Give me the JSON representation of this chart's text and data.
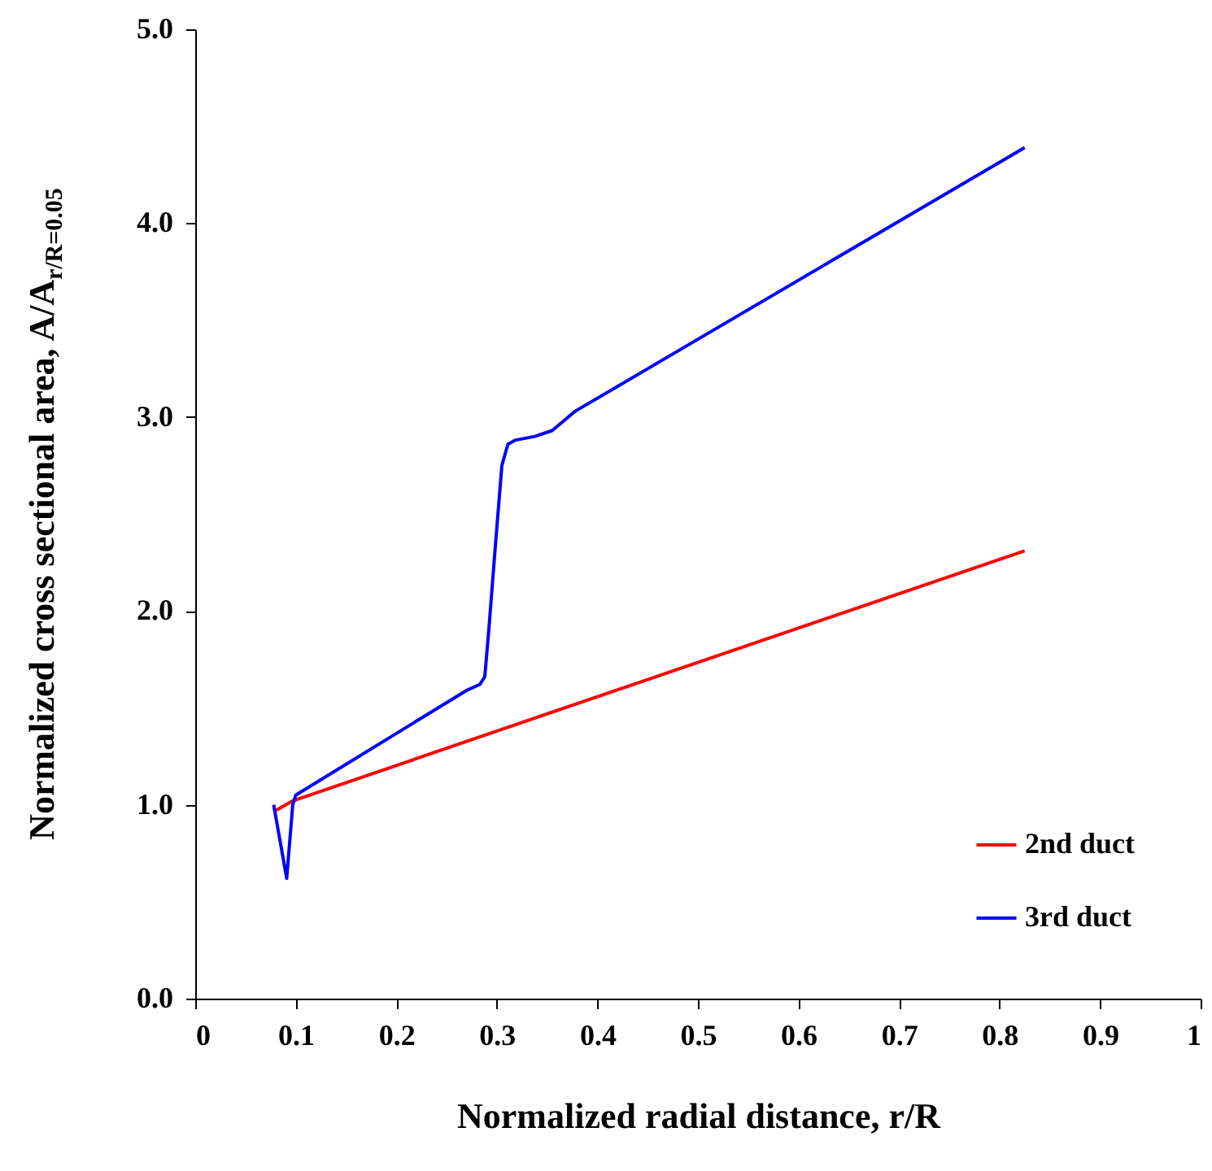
{
  "chart_data": {
    "type": "line",
    "xlabel": "Normalized  radial distance, r/R",
    "ylabel": "Normalized  cross sectional area, A/A$_{r/R=0.05}$",
    "xlim": [
      0,
      1
    ],
    "xticks": [
      0,
      0.1,
      0.2,
      0.3,
      0.4,
      0.5,
      0.6,
      0.7,
      0.8,
      0.9,
      1
    ],
    "ylim": [
      0,
      5
    ],
    "yticks": [
      {
        "value": 0,
        "label": "0.0"
      },
      {
        "value": 1,
        "label": "1.0"
      },
      {
        "value": 2,
        "label": "2.0"
      },
      {
        "value": 3,
        "label": "3.0"
      },
      {
        "value": 4,
        "label": "4.0"
      },
      {
        "value": 5,
        "label": "5.0"
      }
    ],
    "grid": false,
    "legend": "bottom right",
    "marker": "none",
    "line_style": "solid",
    "series": [
      {
        "name": "2nd duct",
        "color": "#ff0000",
        "x": [
          0.08,
          0.097,
          0.825
        ],
        "values": [
          0.97,
          1.02,
          2.31
        ]
      },
      {
        "name": "3rd duct",
        "color": "#0000ff",
        "x": [
          0.078,
          0.091,
          0.097,
          0.1,
          0.27,
          0.283,
          0.288,
          0.292,
          0.298,
          0.305,
          0.311,
          0.318,
          0.338,
          0.355,
          0.378,
          0.825
        ],
        "values": [
          1.0,
          0.62,
          1.0,
          1.05,
          1.59,
          1.62,
          1.66,
          1.9,
          2.3,
          2.75,
          2.86,
          2.88,
          2.9,
          2.93,
          3.03,
          4.39
        ]
      }
    ]
  }
}
